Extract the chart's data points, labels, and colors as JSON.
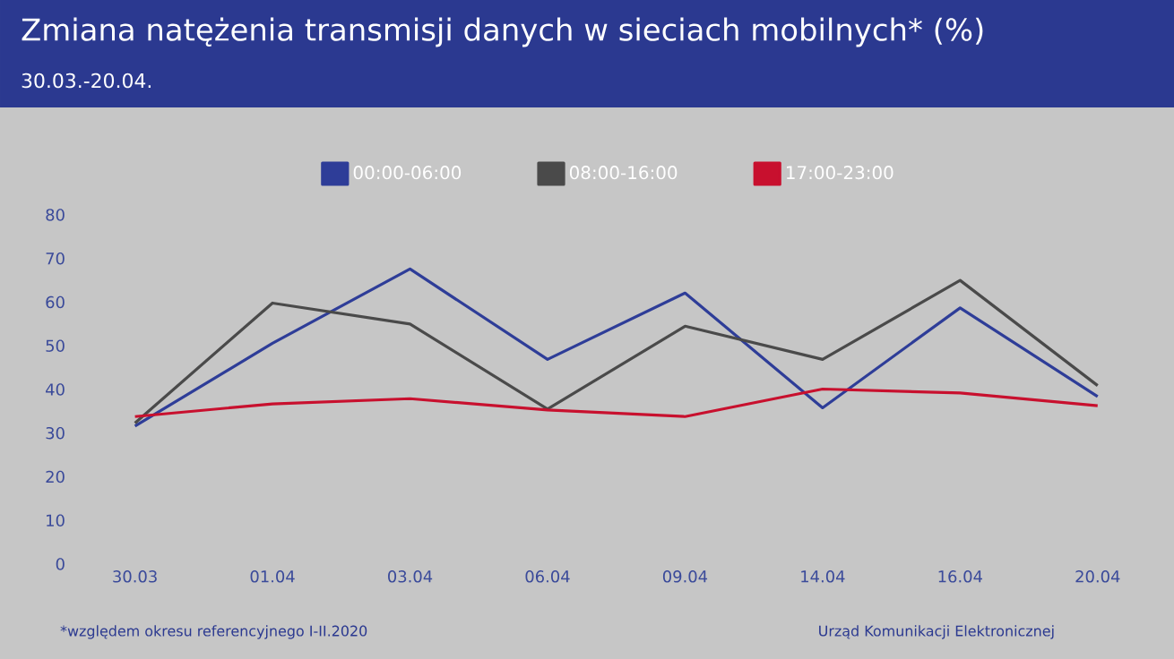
{
  "chart_data": {
    "type": "line",
    "title": "Zmiana natężenia transmisji danych w sieciach mobilnych* (%)",
    "subtitle": "30.03.-20.04.",
    "categories": [
      "30.03",
      "01.04",
      "03.04",
      "06.04",
      "09.04",
      "14.04",
      "16.04",
      "20.04"
    ],
    "series": [
      {
        "name": "00:00-06:00",
        "color": "#2e3d98",
        "values": [
          31.6,
          50.6,
          67.6,
          46.9,
          62.1,
          35.8,
          58.7,
          38.4
        ]
      },
      {
        "name": "08:00-16:00",
        "color": "#4a4a4a",
        "values": [
          32.3,
          59.8,
          55,
          35.5,
          54.5,
          46.9,
          65,
          40.9
        ]
      },
      {
        "name": "17:00-23:00",
        "color": "#c8102e",
        "values": [
          33.8,
          36.7,
          37.9,
          35.3,
          33.8,
          40.1,
          39.2,
          36.3
        ]
      }
    ],
    "ylim": [
      0,
      80
    ],
    "yticks": [
      0,
      10,
      20,
      30,
      40,
      50,
      60,
      70,
      80
    ],
    "legend": "top",
    "annotations": [
      "*względem okresu referencyjnego I-II.2020",
      "Urząd Komunikacji Elektronicznej"
    ]
  }
}
